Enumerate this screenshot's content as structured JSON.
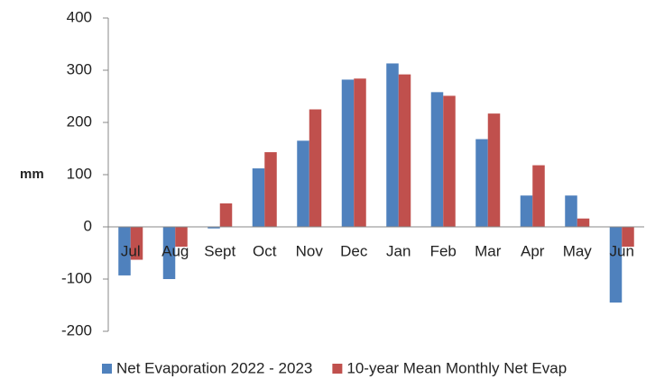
{
  "chart_data": {
    "type": "bar",
    "ylabel": "mm",
    "categories": [
      "Jul",
      "Aug",
      "Sept",
      "Oct",
      "Nov",
      "Dec",
      "Jan",
      "Feb",
      "Mar",
      "Apr",
      "May",
      "Jun"
    ],
    "series": [
      {
        "name": "Net Evaporation 2022 - 2023",
        "color": "#4f81bd",
        "values": [
          -93,
          -100,
          -3,
          112,
          165,
          282,
          313,
          258,
          168,
          60,
          60,
          -145
        ]
      },
      {
        "name": "10-year Mean Monthly Net Evap",
        "color": "#c0504d",
        "values": [
          -63,
          -38,
          45,
          143,
          225,
          284,
          292,
          251,
          217,
          118,
          16,
          -38
        ]
      }
    ],
    "ylim": [
      -200,
      400
    ],
    "yticks": [
      -200,
      -100,
      0,
      100,
      200,
      300,
      400
    ],
    "grid": false,
    "legend": "bottom"
  }
}
